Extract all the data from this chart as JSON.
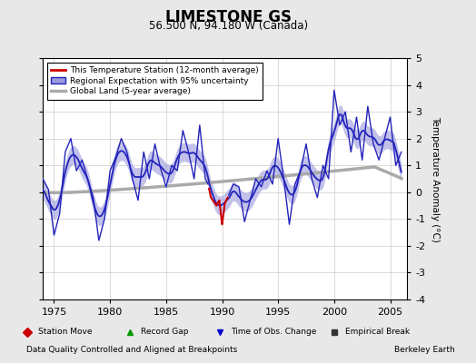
{
  "title": "LIMESTONE GS",
  "subtitle": "56.500 N, 94.180 W (Canada)",
  "ylabel": "Temperature Anomaly (°C)",
  "xlabel_left": "Data Quality Controlled and Aligned at Breakpoints",
  "xlabel_right": "Berkeley Earth",
  "xlim": [
    1974.0,
    2006.5
  ],
  "ylim": [
    -4,
    5
  ],
  "yticks": [
    -4,
    -3,
    -2,
    -1,
    0,
    1,
    2,
    3,
    4,
    5
  ],
  "xticks": [
    1975,
    1980,
    1985,
    1990,
    1995,
    2000,
    2005
  ],
  "bg_color": "#e8e8e8",
  "plot_bg_color": "#ffffff",
  "regional_color": "#2222bb",
  "regional_fill_color": "#9999dd",
  "station_color": "#cc0000",
  "global_color": "#aaaaaa",
  "red_start": 1988.75,
  "red_end": 1990.5,
  "legend_items": [
    "This Temperature Station (12-month average)",
    "Regional Expectation with 95% uncertainty",
    "Global Land (5-year average)"
  ],
  "bottom_legend": [
    {
      "marker": "D",
      "color": "#cc0000",
      "label": "Station Move"
    },
    {
      "marker": "^",
      "color": "#009900",
      "label": "Record Gap"
    },
    {
      "marker": "v",
      "color": "#0000cc",
      "label": "Time of Obs. Change"
    },
    {
      "marker": "s",
      "color": "#333333",
      "label": "Empirical Break"
    }
  ]
}
